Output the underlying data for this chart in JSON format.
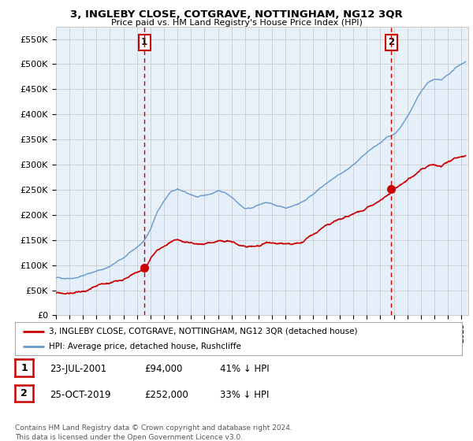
{
  "title": "3, INGLEBY CLOSE, COTGRAVE, NOTTINGHAM, NG12 3QR",
  "subtitle": "Price paid vs. HM Land Registry's House Price Index (HPI)",
  "ylim": [
    0,
    575000
  ],
  "yticks": [
    0,
    50000,
    100000,
    150000,
    200000,
    250000,
    300000,
    350000,
    400000,
    450000,
    500000,
    550000
  ],
  "ytick_labels": [
    "£0",
    "£50K",
    "£100K",
    "£150K",
    "£200K",
    "£250K",
    "£300K",
    "£350K",
    "£400K",
    "£450K",
    "£500K",
    "£550K"
  ],
  "x_start_year": 1995.0,
  "x_end_year": 2025.5,
  "sale1_date": 2001.55,
  "sale1_price": 94000,
  "sale1_label": "1",
  "sale2_date": 2019.81,
  "sale2_price": 252000,
  "sale2_label": "2",
  "legend_red": "3, INGLEBY CLOSE, COTGRAVE, NOTTINGHAM, NG12 3QR (detached house)",
  "legend_blue": "HPI: Average price, detached house, Rushcliffe",
  "table_row1": [
    "1",
    "23-JUL-2001",
    "£94,000",
    "41% ↓ HPI"
  ],
  "table_row2": [
    "2",
    "25-OCT-2019",
    "£252,000",
    "33% ↓ HPI"
  ],
  "footer": "Contains HM Land Registry data © Crown copyright and database right 2024.\nThis data is licensed under the Open Government Licence v3.0.",
  "red_color": "#cc0000",
  "blue_color": "#6699cc",
  "blue_fill": "#ddeeff",
  "grid_color": "#cccccc",
  "background_color": "#ffffff",
  "hpi_points": [
    [
      1995.0,
      75000
    ],
    [
      1995.5,
      74000
    ],
    [
      1996.0,
      76000
    ],
    [
      1996.5,
      78000
    ],
    [
      1997.0,
      82000
    ],
    [
      1997.5,
      88000
    ],
    [
      1998.0,
      92000
    ],
    [
      1998.5,
      96000
    ],
    [
      1999.0,
      102000
    ],
    [
      1999.5,
      110000
    ],
    [
      2000.0,
      118000
    ],
    [
      2000.5,
      128000
    ],
    [
      2001.0,
      138000
    ],
    [
      2001.5,
      150000
    ],
    [
      2002.0,
      175000
    ],
    [
      2002.5,
      210000
    ],
    [
      2003.0,
      230000
    ],
    [
      2003.5,
      248000
    ],
    [
      2004.0,
      255000
    ],
    [
      2004.5,
      248000
    ],
    [
      2005.0,
      242000
    ],
    [
      2005.5,
      238000
    ],
    [
      2006.0,
      240000
    ],
    [
      2006.5,
      245000
    ],
    [
      2007.0,
      252000
    ],
    [
      2007.5,
      248000
    ],
    [
      2008.0,
      240000
    ],
    [
      2008.5,
      230000
    ],
    [
      2009.0,
      220000
    ],
    [
      2009.5,
      222000
    ],
    [
      2010.0,
      228000
    ],
    [
      2010.5,
      232000
    ],
    [
      2011.0,
      228000
    ],
    [
      2011.5,
      225000
    ],
    [
      2012.0,
      222000
    ],
    [
      2012.5,
      226000
    ],
    [
      2013.0,
      232000
    ],
    [
      2013.5,
      240000
    ],
    [
      2014.0,
      252000
    ],
    [
      2014.5,
      262000
    ],
    [
      2015.0,
      272000
    ],
    [
      2015.5,
      282000
    ],
    [
      2016.0,
      290000
    ],
    [
      2016.5,
      298000
    ],
    [
      2017.0,
      308000
    ],
    [
      2017.5,
      318000
    ],
    [
      2018.0,
      328000
    ],
    [
      2018.5,
      338000
    ],
    [
      2019.0,
      348000
    ],
    [
      2019.5,
      358000
    ],
    [
      2020.0,
      365000
    ],
    [
      2020.5,
      378000
    ],
    [
      2021.0,
      398000
    ],
    [
      2021.5,
      422000
    ],
    [
      2022.0,
      448000
    ],
    [
      2022.5,
      465000
    ],
    [
      2023.0,
      472000
    ],
    [
      2023.5,
      468000
    ],
    [
      2024.0,
      478000
    ],
    [
      2024.5,
      490000
    ],
    [
      2025.0,
      500000
    ],
    [
      2025.3,
      505000
    ]
  ],
  "red_points": [
    [
      1995.0,
      44000
    ],
    [
      1995.5,
      43000
    ],
    [
      1996.0,
      44000
    ],
    [
      1996.5,
      46000
    ],
    [
      1997.0,
      48000
    ],
    [
      1997.5,
      52000
    ],
    [
      1998.0,
      55000
    ],
    [
      1998.5,
      58000
    ],
    [
      1999.0,
      62000
    ],
    [
      1999.5,
      68000
    ],
    [
      2000.0,
      74000
    ],
    [
      2000.5,
      82000
    ],
    [
      2001.0,
      88000
    ],
    [
      2001.5,
      95000
    ],
    [
      2002.0,
      112000
    ],
    [
      2002.5,
      130000
    ],
    [
      2003.0,
      140000
    ],
    [
      2003.5,
      148000
    ],
    [
      2004.0,
      152000
    ],
    [
      2004.5,
      148000
    ],
    [
      2005.0,
      145000
    ],
    [
      2005.5,
      143000
    ],
    [
      2006.0,
      145000
    ],
    [
      2006.5,
      148000
    ],
    [
      2007.0,
      152000
    ],
    [
      2007.5,
      150000
    ],
    [
      2008.0,
      148000
    ],
    [
      2008.5,
      142000
    ],
    [
      2009.0,
      138000
    ],
    [
      2009.5,
      140000
    ],
    [
      2010.0,
      143000
    ],
    [
      2010.5,
      146000
    ],
    [
      2011.0,
      144000
    ],
    [
      2011.5,
      142000
    ],
    [
      2012.0,
      140000
    ],
    [
      2012.5,
      142000
    ],
    [
      2013.0,
      146000
    ],
    [
      2013.5,
      152000
    ],
    [
      2014.0,
      160000
    ],
    [
      2014.5,
      168000
    ],
    [
      2015.0,
      175000
    ],
    [
      2015.5,
      182000
    ],
    [
      2016.0,
      188000
    ],
    [
      2016.5,
      194000
    ],
    [
      2017.0,
      200000
    ],
    [
      2017.5,
      208000
    ],
    [
      2018.0,
      216000
    ],
    [
      2018.5,
      224000
    ],
    [
      2019.0,
      232000
    ],
    [
      2019.5,
      240000
    ],
    [
      2020.0,
      248000
    ],
    [
      2020.5,
      258000
    ],
    [
      2021.0,
      268000
    ],
    [
      2021.5,
      278000
    ],
    [
      2022.0,
      290000
    ],
    [
      2022.5,
      298000
    ],
    [
      2023.0,
      302000
    ],
    [
      2023.5,
      298000
    ],
    [
      2024.0,
      305000
    ],
    [
      2024.5,
      310000
    ],
    [
      2025.0,
      315000
    ],
    [
      2025.3,
      318000
    ]
  ]
}
